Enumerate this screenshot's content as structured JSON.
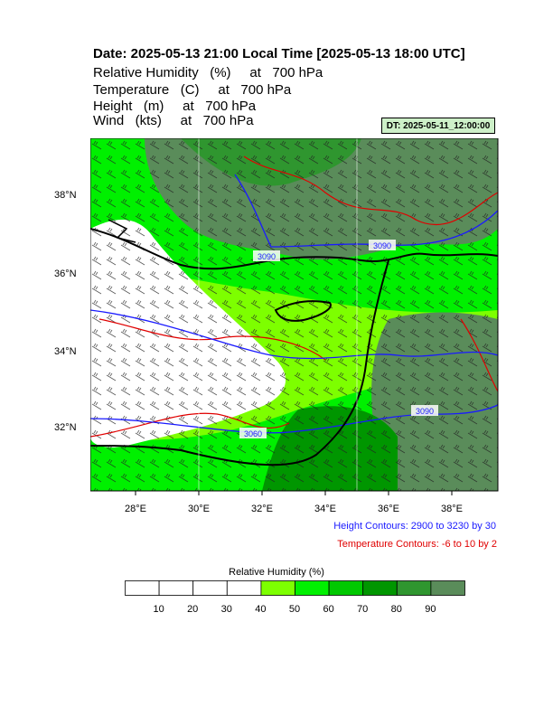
{
  "title": "Date: 2025-05-13  21:00 Local Time [2025-05-13  18:00 UTC]",
  "subtitles": [
    "Relative Humidity   (%)     at   700 hPa",
    "Temperature   (C)     at   700 hPa",
    "Height   (m)     at   700 hPa",
    "Wind   (kts)     at   700 hPa"
  ],
  "dt_badge": "DT: 2025-05-11_12:00:00",
  "axes": {
    "lat_labels": [
      "38°N",
      "36°N",
      "34°N",
      "32°N"
    ],
    "lon_labels": [
      "28°E",
      "30°E",
      "32°E",
      "34°E",
      "36°E",
      "38°E"
    ]
  },
  "contour_labels": [
    "3090",
    "3090",
    "3090",
    "3060"
  ],
  "notes": {
    "height": "Height Contours: 2900 to 3230 by 30",
    "temperature": "Temperature Contours: -6 to 10 by 2"
  },
  "legend": {
    "title": "Relative Humidity  (%)",
    "labels": [
      "10",
      "20",
      "30",
      "40",
      "50",
      "60",
      "70",
      "80",
      "90"
    ],
    "colors": [
      "#ffffff",
      "#ffffff",
      "#ffffff",
      "#ffffff",
      "#7dff00",
      "#00f000",
      "#00c800",
      "#009600",
      "#2f962f",
      "#5a8c5a"
    ]
  },
  "colors": {
    "height_contour": "#1a1aff",
    "temperature_contour": "#e00000",
    "coast": "#000000"
  }
}
